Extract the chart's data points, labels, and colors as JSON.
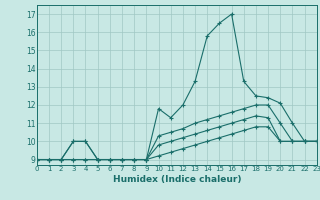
{
  "xlabel": "Humidex (Indice chaleur)",
  "xlim": [
    0,
    23
  ],
  "ylim": [
    8.7,
    17.5
  ],
  "xticks": [
    0,
    1,
    2,
    3,
    4,
    5,
    6,
    7,
    8,
    9,
    10,
    11,
    12,
    13,
    14,
    15,
    16,
    17,
    18,
    19,
    20,
    21,
    22,
    23
  ],
  "yticks": [
    9,
    10,
    11,
    12,
    13,
    14,
    15,
    16,
    17
  ],
  "bg_color": "#c8e8e4",
  "line_color": "#1a6e6a",
  "grid_color": "#a0c8c4",
  "lines": [
    {
      "x": [
        0,
        1,
        2,
        3,
        4,
        5,
        6,
        7,
        8,
        9,
        10,
        11,
        12,
        13,
        14,
        15,
        16,
        17,
        18,
        19,
        20,
        21,
        22,
        23
      ],
      "y": [
        9,
        9,
        9,
        9,
        9,
        9,
        9,
        9,
        9,
        9,
        11.8,
        11.3,
        12.0,
        13.3,
        15.8,
        16.5,
        17.0,
        13.3,
        12.5,
        12.4,
        12.1,
        11.0,
        10.0,
        10.0
      ]
    },
    {
      "x": [
        0,
        1,
        2,
        3,
        4,
        5,
        6,
        7,
        8,
        9,
        10,
        11,
        12,
        13,
        14,
        15,
        16,
        17,
        18,
        19,
        20,
        21,
        22,
        23
      ],
      "y": [
        9,
        9,
        9,
        10,
        10,
        9,
        9,
        9,
        9,
        9.0,
        10.3,
        10.5,
        10.7,
        11.0,
        11.2,
        11.4,
        11.6,
        11.8,
        12.0,
        12.0,
        11.0,
        10.0,
        10.0,
        10.0
      ]
    },
    {
      "x": [
        0,
        1,
        2,
        3,
        4,
        5,
        6,
        7,
        8,
        9,
        10,
        11,
        12,
        13,
        14,
        15,
        16,
        17,
        18,
        19,
        20,
        21,
        22,
        23
      ],
      "y": [
        9,
        9,
        9,
        10,
        10,
        9,
        9,
        9,
        9,
        9.0,
        9.8,
        10.0,
        10.2,
        10.4,
        10.6,
        10.8,
        11.0,
        11.2,
        11.4,
        11.3,
        10.0,
        10.0,
        10.0,
        10.0
      ]
    },
    {
      "x": [
        0,
        1,
        2,
        3,
        4,
        5,
        6,
        7,
        8,
        9,
        10,
        11,
        12,
        13,
        14,
        15,
        16,
        17,
        18,
        19,
        20,
        21,
        22,
        23
      ],
      "y": [
        9,
        9,
        9,
        9,
        9,
        9,
        9,
        9,
        9,
        9,
        9.2,
        9.4,
        9.6,
        9.8,
        10.0,
        10.2,
        10.4,
        10.6,
        10.8,
        10.8,
        10.0,
        10.0,
        10.0,
        10.0
      ]
    }
  ]
}
